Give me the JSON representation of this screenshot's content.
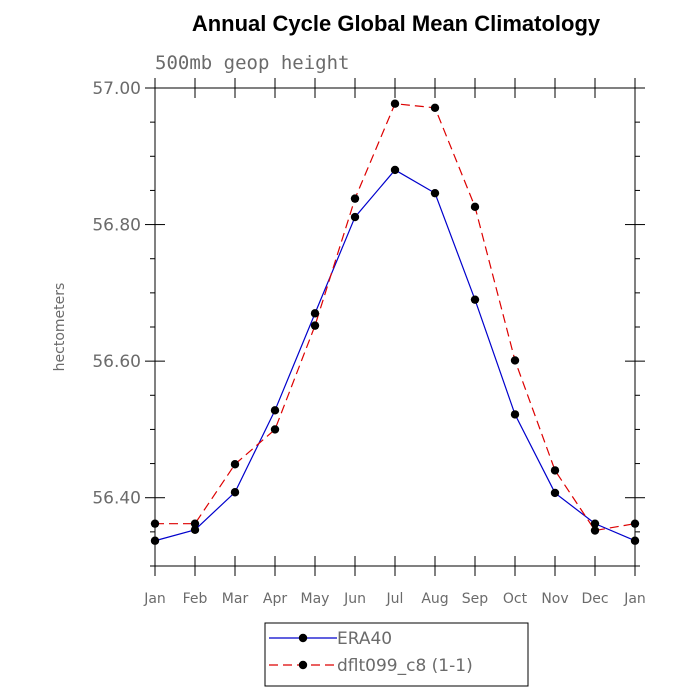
{
  "chart_data": {
    "type": "line",
    "title": "Annual Cycle Global Mean Climatology",
    "subtitle": "500mb geop height",
    "ylabel": "hectometers",
    "xlabel": "",
    "categories": [
      "Jan",
      "Feb",
      "Mar",
      "Apr",
      "May",
      "Jun",
      "Jul",
      "Aug",
      "Sep",
      "Oct",
      "Nov",
      "Dec",
      "Jan"
    ],
    "ylim": [
      56.3,
      57.0
    ],
    "yticks": [
      56.4,
      56.6,
      56.8,
      57.0
    ],
    "ytick_labels": [
      "56.40",
      "56.60",
      "56.80",
      "57.00"
    ],
    "series": [
      {
        "name": "ERA40",
        "color": "#0000cc",
        "dash": "solid",
        "values": [
          56.337,
          56.353,
          56.408,
          56.528,
          56.67,
          56.811,
          56.88,
          56.846,
          56.69,
          56.522,
          56.407,
          56.362,
          56.337
        ]
      },
      {
        "name": "dflt099_c8 (1-1)",
        "color": "#dd0000",
        "dash": "dashed",
        "values": [
          56.362,
          56.362,
          56.449,
          56.5,
          56.652,
          56.838,
          56.977,
          56.971,
          56.826,
          56.601,
          56.44,
          56.352,
          56.362
        ]
      }
    ],
    "legend_position": "bottom-center",
    "grid": false
  }
}
